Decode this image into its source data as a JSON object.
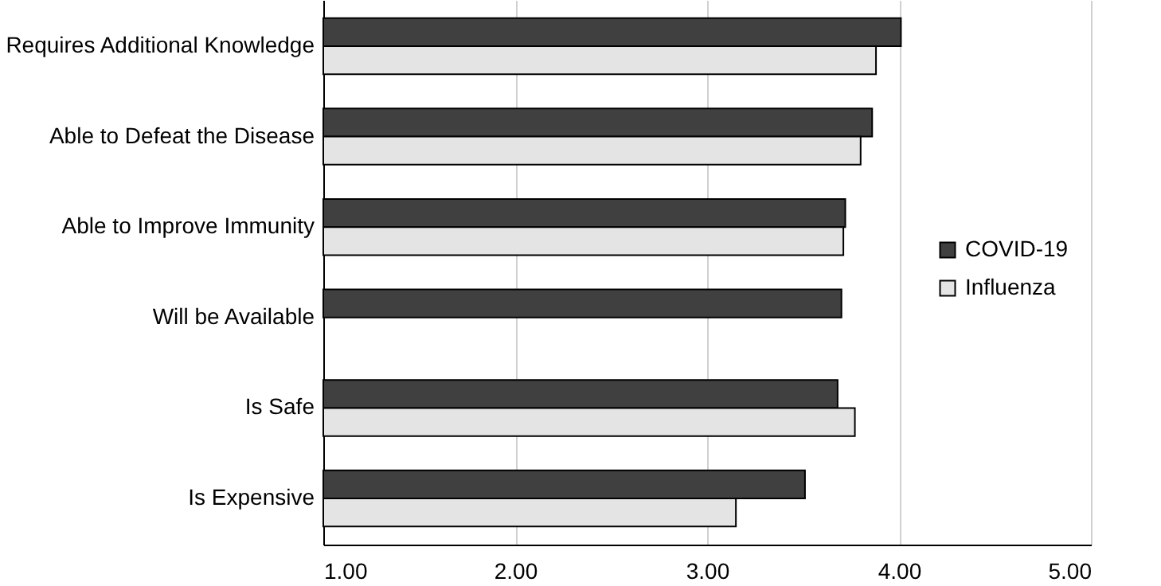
{
  "chart_data": {
    "type": "bar",
    "orientation": "horizontal",
    "categories": [
      "Requires Additional Knowledge",
      "Able to Defeat the Disease",
      "Able to Improve Immunity",
      "Will be Available",
      "Is Safe",
      "Is Expensive"
    ],
    "series": [
      {
        "name": "COVID-19",
        "color": "#404040",
        "values": [
          4.01,
          3.86,
          3.72,
          3.7,
          3.68,
          3.51
        ]
      },
      {
        "name": "Influenza",
        "color": "#e4e4e4",
        "values": [
          3.88,
          3.8,
          3.71,
          null,
          3.77,
          3.15
        ]
      }
    ],
    "xlim": [
      1.0,
      5.0
    ],
    "xticks": [
      {
        "value": 1,
        "label": "1.00"
      },
      {
        "value": 2,
        "label": "2.00"
      },
      {
        "value": 3,
        "label": "3.00"
      },
      {
        "value": 4,
        "label": "4.00"
      },
      {
        "value": 5,
        "label": "5.00"
      }
    ],
    "grid": "x",
    "legend": "right"
  }
}
